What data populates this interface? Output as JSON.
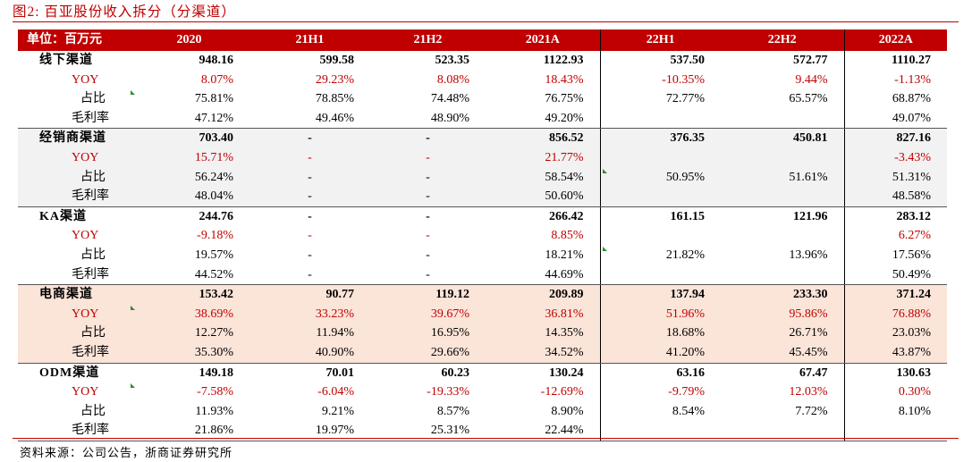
{
  "title": "图2:   百亚股份收入拆分（分渠道）",
  "source": "资料来源：公司公告，浙商证券研究所",
  "columns": [
    "单位：百万元",
    "2020",
    "21H1",
    "21H2",
    "2021A",
    "22H1",
    "22H2",
    "2022A"
  ],
  "groups": [
    {
      "name": "线下渠道",
      "bg": "white",
      "rows": [
        {
          "label": "线下渠道",
          "values": [
            "948.16",
            "599.58",
            "523.35",
            "1122.93",
            "537.50",
            "572.77",
            "1110.27"
          ]
        },
        {
          "label": "YOY",
          "values": [
            "8.07%",
            "29.23%",
            "8.08%",
            "18.43%",
            "-10.35%",
            "9.44%",
            "-1.13%"
          ]
        },
        {
          "label": "占比",
          "values": [
            "75.81%",
            "78.85%",
            "74.48%",
            "76.75%",
            "72.77%",
            "65.57%",
            "68.87%"
          ]
        },
        {
          "label": "毛利率",
          "values": [
            "47.12%",
            "49.46%",
            "48.90%",
            "49.20%",
            "",
            "",
            "49.07%"
          ]
        }
      ]
    },
    {
      "name": "经销商渠道",
      "bg": "grey",
      "rows": [
        {
          "label": "经销商渠道",
          "values": [
            "703.40",
            "-",
            "-",
            "856.52",
            "376.35",
            "450.81",
            "827.16"
          ]
        },
        {
          "label": "YOY",
          "values": [
            "15.71%",
            "-",
            "-",
            "21.77%",
            "",
            "",
            "-3.43%"
          ]
        },
        {
          "label": "占比",
          "values": [
            "56.24%",
            "-",
            "-",
            "58.54%",
            "50.95%",
            "51.61%",
            "51.31%"
          ]
        },
        {
          "label": "毛利率",
          "values": [
            "48.04%",
            "-",
            "-",
            "50.60%",
            "",
            "",
            "48.58%"
          ]
        }
      ]
    },
    {
      "name": "KA渠道",
      "bg": "white",
      "rows": [
        {
          "label": "KA渠道",
          "values": [
            "244.76",
            "-",
            "-",
            "266.42",
            "161.15",
            "121.96",
            "283.12"
          ]
        },
        {
          "label": "YOY",
          "values": [
            "-9.18%",
            "-",
            "-",
            "8.85%",
            "",
            "",
            "6.27%"
          ]
        },
        {
          "label": "占比",
          "values": [
            "19.57%",
            "-",
            "-",
            "18.21%",
            "21.82%",
            "13.96%",
            "17.56%"
          ]
        },
        {
          "label": "毛利率",
          "values": [
            "44.52%",
            "-",
            "-",
            "44.69%",
            "",
            "",
            "50.49%"
          ]
        }
      ]
    },
    {
      "name": "电商渠道",
      "bg": "pink",
      "rows": [
        {
          "label": "电商渠道",
          "values": [
            "153.42",
            "90.77",
            "119.12",
            "209.89",
            "137.94",
            "233.30",
            "371.24"
          ]
        },
        {
          "label": "YOY",
          "values": [
            "38.69%",
            "33.23%",
            "39.67%",
            "36.81%",
            "51.96%",
            "95.86%",
            "76.88%"
          ]
        },
        {
          "label": "占比",
          "values": [
            "12.27%",
            "11.94%",
            "16.95%",
            "14.35%",
            "18.68%",
            "26.71%",
            "23.03%"
          ]
        },
        {
          "label": "毛利率",
          "values": [
            "35.30%",
            "40.90%",
            "29.66%",
            "34.52%",
            "41.20%",
            "45.45%",
            "43.87%"
          ]
        }
      ]
    },
    {
      "name": "ODM渠道",
      "bg": "white",
      "rows": [
        {
          "label": "ODM渠道",
          "values": [
            "149.18",
            "70.01",
            "60.23",
            "130.24",
            "63.16",
            "67.47",
            "130.63"
          ]
        },
        {
          "label": "YOY",
          "values": [
            "-7.58%",
            "-6.04%",
            "-19.33%",
            "-12.69%",
            "-9.79%",
            "12.03%",
            "0.30%"
          ]
        },
        {
          "label": "占比",
          "values": [
            "11.93%",
            "9.21%",
            "8.57%",
            "8.90%",
            "8.54%",
            "7.72%",
            "8.10%"
          ]
        },
        {
          "label": "毛利率",
          "values": [
            "21.86%",
            "19.97%",
            "25.31%",
            "22.44%",
            "",
            "",
            ""
          ]
        }
      ]
    }
  ],
  "colors": {
    "accent": "#c00000",
    "grey_band": "#f2f2f2",
    "pink_band": "#fbe4d8",
    "flag": "#2e8b2e"
  }
}
